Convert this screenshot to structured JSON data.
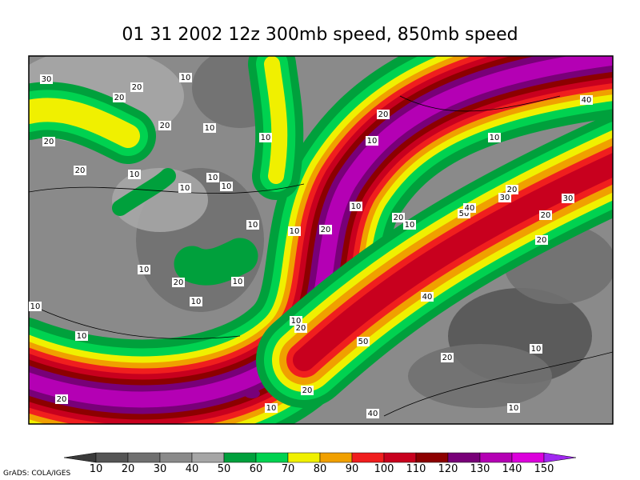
{
  "title": "01 31 2002 12z 300mb speed, 850mb speed",
  "contour_labels": [
    30,
    20,
    10,
    20,
    20,
    10,
    10,
    20,
    20,
    10,
    10,
    10,
    10,
    20,
    10,
    10,
    40,
    20,
    30,
    30,
    10,
    20,
    10,
    50,
    40,
    20,
    10,
    10,
    20,
    20,
    10,
    20,
    10,
    10,
    10,
    40,
    10,
    20,
    10,
    50,
    10,
    20,
    20,
    20,
    10,
    40,
    10
  ],
  "colorbar": {
    "labels": [
      10,
      20,
      30,
      40,
      50,
      60,
      70,
      80,
      90,
      100,
      110,
      120,
      130,
      140,
      150
    ],
    "colors": [
      "#3a3a3a",
      "#555555",
      "#707070",
      "#8a8a8a",
      "#a6a6a6",
      "#00a03c",
      "#00d250",
      "#f0f000",
      "#f0a000",
      "#f01e1e",
      "#c8001e",
      "#8c0000",
      "#780078",
      "#b400b4",
      "#dc00dc",
      "#a028f0"
    ]
  },
  "credit": "GrADS: COLA/IGES"
}
